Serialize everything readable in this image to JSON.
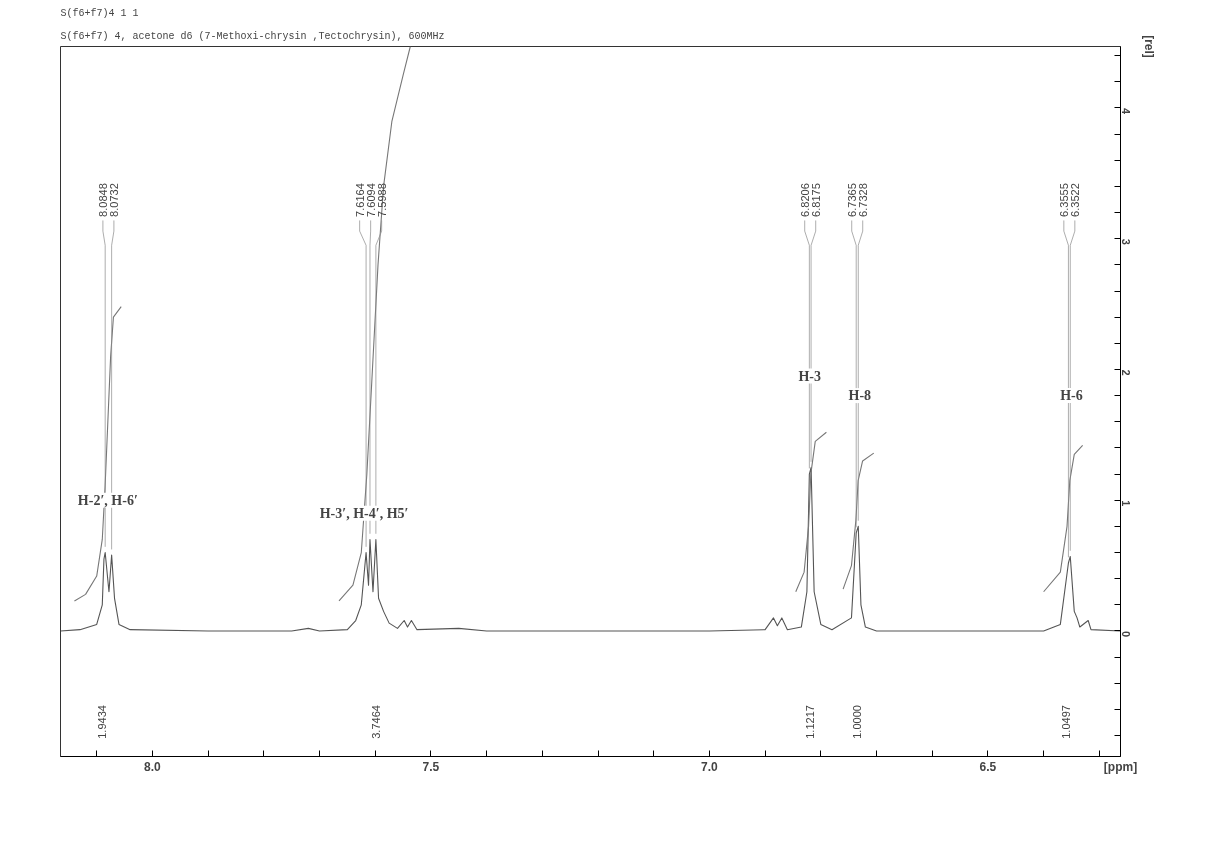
{
  "chart_data": {
    "type": "line",
    "title": "S(f6+f7)4  1  1",
    "subtitle": "S(f6+f7) 4, acetone d6 (7-Methoxi-chrysin ,Tectochrysin), 600MHz",
    "xlabel": "[ppm]",
    "ylabel": "[rel]",
    "xlim": [
      8.165,
      6.262
    ],
    "ylim": [
      -0.96,
      4.47
    ],
    "xticks": [
      {
        "value": 8.1,
        "label": null
      },
      {
        "value": 8.0,
        "label": "8.0"
      },
      {
        "value": 7.9,
        "label": null
      },
      {
        "value": 7.8,
        "label": null
      },
      {
        "value": 7.7,
        "label": null
      },
      {
        "value": 7.6,
        "label": null
      },
      {
        "value": 7.5,
        "label": "7.5"
      },
      {
        "value": 7.4,
        "label": null
      },
      {
        "value": 7.3,
        "label": null
      },
      {
        "value": 7.2,
        "label": null
      },
      {
        "value": 7.1,
        "label": null
      },
      {
        "value": 7.0,
        "label": "7.0"
      },
      {
        "value": 6.9,
        "label": null
      },
      {
        "value": 6.8,
        "label": null
      },
      {
        "value": 6.7,
        "label": null
      },
      {
        "value": 6.6,
        "label": null
      },
      {
        "value": 6.5,
        "label": "6.5"
      },
      {
        "value": 6.4,
        "label": null
      },
      {
        "value": 6.3,
        "label": null
      }
    ],
    "yticks": [
      {
        "value": -0.8,
        "label": null
      },
      {
        "value": -0.6,
        "label": null
      },
      {
        "value": -0.4,
        "label": null
      },
      {
        "value": -0.2,
        "label": null
      },
      0,
      {
        "value": 0.2,
        "label": null
      },
      {
        "value": 0.4,
        "label": null
      },
      {
        "value": 0.6,
        "label": null
      },
      {
        "value": 0.8,
        "label": null
      },
      1,
      {
        "value": 1.2,
        "label": null
      },
      {
        "value": 1.4,
        "label": null
      },
      {
        "value": 1.6,
        "label": null
      },
      {
        "value": 1.8,
        "label": null
      },
      2,
      {
        "value": 2.2,
        "label": null
      },
      {
        "value": 2.4,
        "label": null
      },
      {
        "value": 2.6,
        "label": null
      },
      {
        "value": 2.8,
        "label": null
      },
      3,
      {
        "value": 3.2,
        "label": null
      },
      {
        "value": 3.4,
        "label": null
      },
      {
        "value": 3.6,
        "label": null
      },
      {
        "value": 3.8,
        "label": null
      },
      4,
      {
        "value": 4.2,
        "label": null
      },
      {
        "value": 4.4,
        "label": null
      }
    ],
    "grid": false,
    "marker": "none",
    "line_style": "solid",
    "series": [
      {
        "color": "#555555",
        "x": [
          8.165,
          8.13,
          8.1,
          8.09,
          8.087,
          8.0848,
          8.078,
          8.0732,
          8.068,
          8.06,
          8.04,
          7.9,
          7.75,
          7.72,
          7.7,
          7.65,
          7.635,
          7.625,
          7.6164,
          7.612,
          7.6094,
          7.604,
          7.5988,
          7.594,
          7.585,
          7.575,
          7.56,
          7.548,
          7.542,
          7.535,
          7.525,
          7.45,
          7.4,
          7.0,
          6.9,
          6.885,
          6.878,
          6.87,
          6.86,
          6.835,
          6.825,
          6.8206,
          6.8175,
          6.812,
          6.8,
          6.78,
          6.745,
          6.7365,
          6.7328,
          6.728,
          6.72,
          6.7,
          6.4,
          6.37,
          6.3555,
          6.3522,
          6.345,
          6.34,
          6.335,
          6.32,
          6.315,
          6.262
        ],
        "values": [
          0,
          0.01,
          0.05,
          0.2,
          0.55,
          0.6,
          0.3,
          0.58,
          0.25,
          0.05,
          0.01,
          0,
          0,
          0.02,
          0,
          0.01,
          0.08,
          0.2,
          0.6,
          0.35,
          0.7,
          0.3,
          0.7,
          0.25,
          0.15,
          0.06,
          0.02,
          0.08,
          0.03,
          0.08,
          0.01,
          0.02,
          0,
          0,
          0.01,
          0.1,
          0.04,
          0.1,
          0.01,
          0.03,
          0.3,
          1.2,
          1.25,
          0.3,
          0.05,
          0.01,
          0.1,
          0.75,
          0.8,
          0.2,
          0.03,
          0,
          0,
          0.05,
          0.52,
          0.57,
          0.15,
          0.1,
          0.03,
          0.08,
          0.01,
          0
        ]
      },
      {
        "color": "#777777",
        "x": [
          8.14,
          8.12,
          8.1,
          8.09,
          8.085,
          8.08,
          8.075,
          8.07,
          8.056
        ],
        "values": [
          0.23,
          0.28,
          0.42,
          0.7,
          1.1,
          1.6,
          2.1,
          2.4,
          2.48
        ]
      },
      {
        "color": "#777777",
        "x": [
          7.665,
          7.64,
          7.625,
          7.615,
          7.605,
          7.595,
          7.585,
          7.57,
          7.55,
          7.537
        ],
        "values": [
          0.23,
          0.35,
          0.6,
          1.2,
          2.0,
          2.8,
          3.4,
          3.9,
          4.25,
          4.47
        ]
      },
      {
        "color": "#777777",
        "x": [
          6.845,
          6.83,
          6.822,
          6.818,
          6.81,
          6.79
        ],
        "values": [
          0.3,
          0.45,
          0.8,
          1.2,
          1.45,
          1.52
        ]
      },
      {
        "color": "#777777",
        "x": [
          6.76,
          6.745,
          6.737,
          6.733,
          6.725,
          6.705
        ],
        "values": [
          0.32,
          0.5,
          0.85,
          1.15,
          1.3,
          1.36
        ]
      },
      {
        "color": "#777777",
        "x": [
          6.4,
          6.37,
          6.358,
          6.353,
          6.345,
          6.33
        ],
        "values": [
          0.3,
          0.45,
          0.8,
          1.15,
          1.35,
          1.42
        ]
      }
    ],
    "annotations": [
      {
        "text": "8.0848",
        "x": 8.0848,
        "y": 0.6
      },
      {
        "text": "8.0732",
        "x": 8.0732,
        "y": 0.58
      },
      {
        "text": "7.6164",
        "x": 7.6164,
        "y": 0.6
      },
      {
        "text": "7.6094",
        "x": 7.6094,
        "y": 0.7
      },
      {
        "text": "7.5988",
        "x": 7.5988,
        "y": 0.7
      },
      {
        "text": "6.8206",
        "x": 6.8206,
        "y": 1.2
      },
      {
        "text": "6.8175",
        "x": 6.8175,
        "y": 1.25
      },
      {
        "text": "6.7365",
        "x": 6.7365,
        "y": 0.75
      },
      {
        "text": "6.7328",
        "x": 6.7328,
        "y": 0.8
      },
      {
        "text": "6.3555",
        "x": 6.3555,
        "y": 0.52
      },
      {
        "text": "6.3522",
        "x": 6.3522,
        "y": 0.57
      },
      "1.9434",
      "3.7464",
      "1.1217",
      "1.0000",
      "1.0497",
      {
        "text": "H-2′, H-6′",
        "x": 8.08,
        "y": 1.0
      },
      {
        "text": "H-3′, H-4′, H5′",
        "x": 7.62,
        "y": 0.9
      },
      {
        "text": "H-3",
        "x": 6.82,
        "y": 1.95
      },
      {
        "text": "H-8",
        "x": 6.73,
        "y": 1.8
      },
      {
        "text": "H-6",
        "x": 6.35,
        "y": 1.8
      }
    ]
  }
}
